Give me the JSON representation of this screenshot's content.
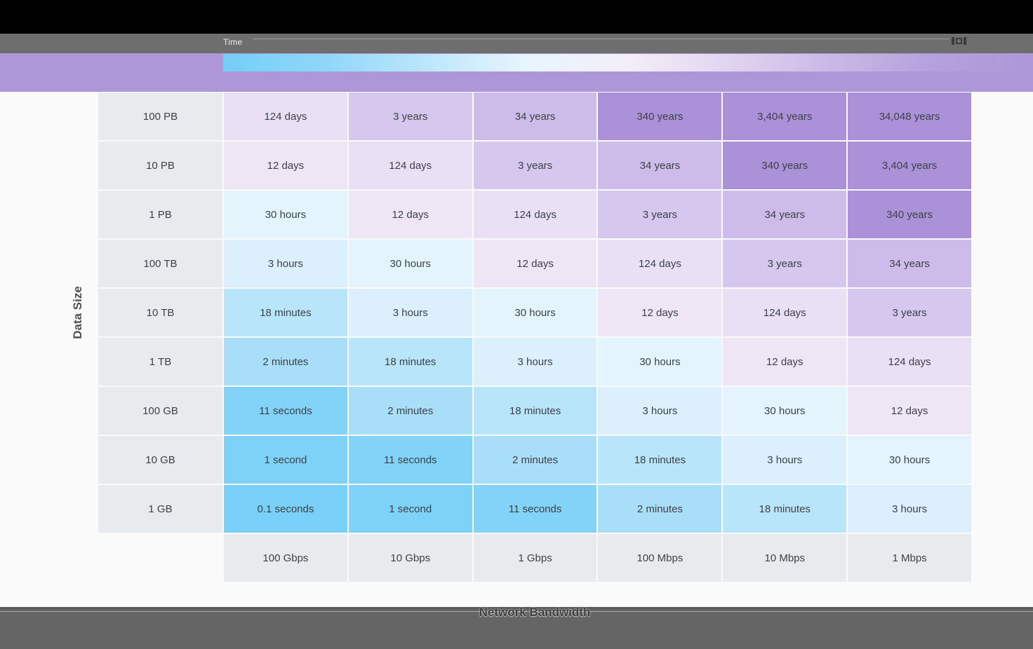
{
  "header": {
    "legend_title": "Time"
  },
  "axes": {
    "y_label": "Data Size",
    "x_label": "Network Bandwidth"
  },
  "colors": {
    "page_bg": "#fafafa",
    "top_bar_bg": "#000000",
    "toolbar_bg": "#6e6e6e",
    "purple_band_bg": "#ad97d7",
    "footer_bg": "#656565",
    "row_label_bg": "#e8ebee",
    "column_label_bg": "#e8ebee",
    "cell_text": "#3c4148"
  },
  "chart_data": {
    "type": "heatmap",
    "title": "",
    "ylabel": "Data Size",
    "xlabel": "Network Bandwidth",
    "rows": [
      "100 PB",
      "10 PB",
      "1 PB",
      "100 TB",
      "10 TB",
      "1 TB",
      "100 GB",
      "10 GB",
      "1 GB"
    ],
    "columns": [
      "100 Gbps",
      "10 Gbps",
      "1 Gbps",
      "100 Mbps",
      "10 Mbps",
      "1 Mbps"
    ],
    "cells": [
      [
        "124 days",
        "3 years",
        "34 years",
        "340 years",
        "3,404 years",
        "34,048 years"
      ],
      [
        "12 days",
        "124 days",
        "3 years",
        "34 years",
        "340 years",
        "3,404 years"
      ],
      [
        "30 hours",
        "12 days",
        "124 days",
        "3 years",
        "34 years",
        "340 years"
      ],
      [
        "3 hours",
        "30 hours",
        "12 days",
        "124 days",
        "3 years",
        "34 years"
      ],
      [
        "18 minutes",
        "3 hours",
        "30 hours",
        "12 days",
        "124 days",
        "3 years"
      ],
      [
        "2 minutes",
        "18 minutes",
        "3 hours",
        "30 hours",
        "12 days",
        "124 days"
      ],
      [
        "11 seconds",
        "2 minutes",
        "18 minutes",
        "3 hours",
        "30 hours",
        "12 days"
      ],
      [
        "1 second",
        "11 seconds",
        "2 minutes",
        "18 minutes",
        "3 hours",
        "30 hours"
      ],
      [
        "0.1 seconds",
        "1 second",
        "11 seconds",
        "2 minutes",
        "18 minutes",
        "3 hours"
      ]
    ],
    "color_scale": {
      "0.1 seconds": "#79d0f8",
      "1 second": "#7ed2f8",
      "11 seconds": "#82d3f8",
      "2 minutes": "#a9def9",
      "18 minutes": "#b9e5fa",
      "3 hours": "#dbf0fc",
      "30 hours": "#e3f4fd",
      "12 days": "#efe6f5",
      "124 days": "#eae0f6",
      "3 years": "#d5c7ed",
      "34 years": "#cdbce9",
      "340 years": "#ab92d8",
      "3,404 years": "#ab92d8",
      "34,048 years": "#ab92d8"
    },
    "legend": {
      "position": "top",
      "orientation": "horizontal",
      "gradient_stops": [
        "#74cef7",
        "#8fd7f8",
        "#bce6fb",
        "#e8f5fd",
        "#f3eef8",
        "#e0d5f0",
        "#c9b9e6",
        "#b5a1db",
        "#ad97d7"
      ]
    },
    "grid": "on"
  }
}
